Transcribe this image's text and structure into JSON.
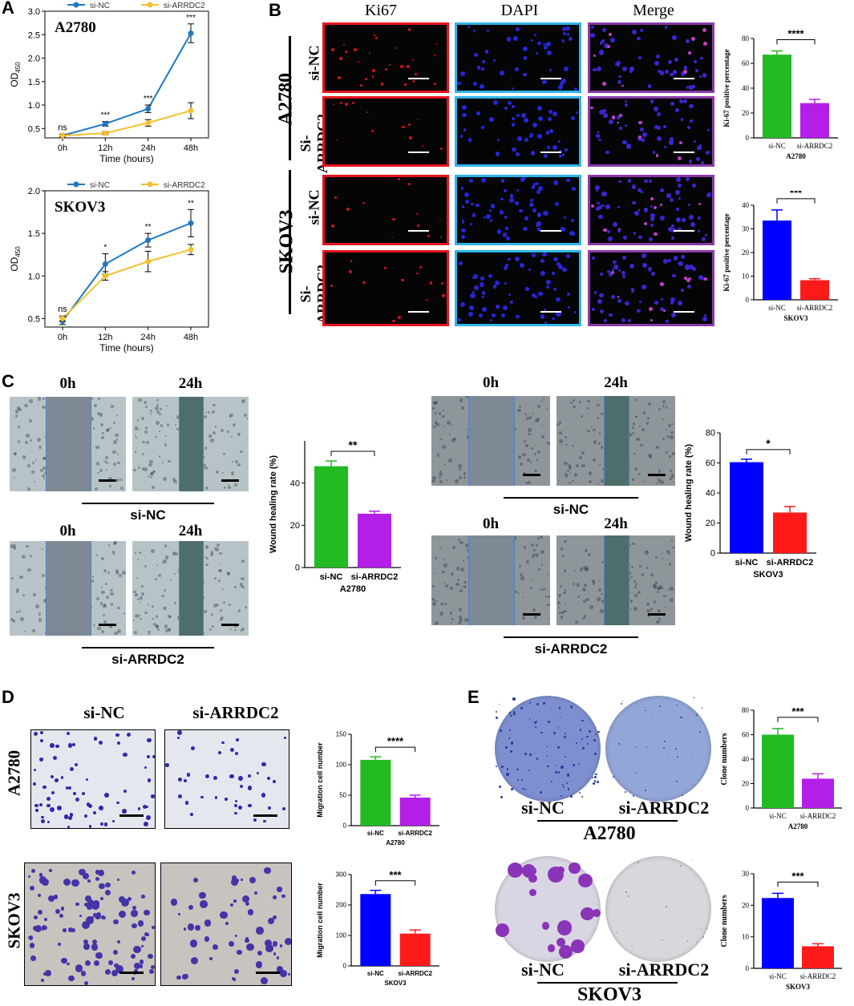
{
  "panels": {
    "a": "A",
    "b": "B",
    "c": "C",
    "d": "D",
    "e": "E"
  },
  "colors": {
    "blue": "#1f77c4",
    "yellow": "#f2c12e",
    "green": "#22bb22",
    "red": "#ff1a1a",
    "purple": "#b31fe6",
    "barblue": "#0000ff"
  },
  "chart_data": [
    {
      "id": "A2780_od",
      "type": "line",
      "title": "A2780",
      "xlabel": "Time (hours)",
      "ylabel": "OD450",
      "ylabel_main": "OD",
      "ylabel_sub": "450",
      "categories": [
        "0h",
        "12h",
        "24h",
        "48h"
      ],
      "ylim": [
        0.3,
        3.0
      ],
      "yticks": [
        "0.5",
        "1.0",
        "1.5",
        "2.0",
        "2.5",
        "3.0"
      ],
      "series": [
        {
          "name": "si-NC",
          "color": "#1f77c4",
          "values": [
            0.35,
            0.6,
            0.92,
            2.53
          ],
          "errors": [
            0.03,
            0.05,
            0.08,
            0.2
          ]
        },
        {
          "name": "si-ARRDC2",
          "color": "#f2c12e",
          "values": [
            0.35,
            0.4,
            0.62,
            0.88
          ],
          "errors": [
            0.03,
            0.03,
            0.07,
            0.17
          ]
        }
      ],
      "annotations": [
        "ns",
        "***",
        "***",
        "***"
      ]
    },
    {
      "id": "SKOV3_od",
      "type": "line",
      "title": "SKOV3",
      "xlabel": "Time (hours)",
      "ylabel": "OD450",
      "ylabel_main": "OD",
      "ylabel_sub": "450",
      "categories": [
        "0h",
        "12h",
        "24h",
        "48h"
      ],
      "ylim": [
        0.4,
        2.0
      ],
      "yticks": [
        "0.5",
        "1.0",
        "1.5",
        "2.0"
      ],
      "series": [
        {
          "name": "si-NC",
          "color": "#1f77c4",
          "values": [
            0.47,
            1.14,
            1.42,
            1.62
          ],
          "errors": [
            0.04,
            0.12,
            0.08,
            0.16
          ]
        },
        {
          "name": "si-ARRDC2",
          "color": "#f2c12e",
          "values": [
            0.5,
            1.0,
            1.17,
            1.31
          ],
          "errors": [
            0.03,
            0.05,
            0.12,
            0.06
          ]
        }
      ],
      "annotations": [
        "ns",
        "*",
        "**",
        "**"
      ]
    },
    {
      "id": "ki67_A2780",
      "type": "bar",
      "xlabel": "A2780",
      "ylabel": "Ki-67 positive percentage",
      "categories": [
        "si-NC",
        "si-ARRDC2"
      ],
      "values": [
        67,
        28
      ],
      "errors": [
        3,
        3
      ],
      "ylim": [
        0,
        80
      ],
      "yticks": [
        "0",
        "20",
        "40",
        "60",
        "80"
      ],
      "colors": [
        "#22bb22",
        "#b31fe6"
      ],
      "sig": "****"
    },
    {
      "id": "ki67_SKOV3",
      "type": "bar",
      "xlabel": "SKOV3",
      "ylabel": "Ki-67 positive percentage",
      "categories": [
        "si-NC",
        "si-ARRDC2"
      ],
      "values": [
        33.5,
        8.3
      ],
      "errors": [
        4.5,
        0.6
      ],
      "ylim": [
        0,
        40
      ],
      "yticks": [
        "0",
        "10",
        "20",
        "30",
        "40"
      ],
      "colors": [
        "#0000ff",
        "#ff1a1a"
      ],
      "sig": "***"
    },
    {
      "id": "wound_A2780",
      "type": "bar",
      "xlabel": "A2780",
      "ylabel": "Wound healing rate (%)",
      "categories": [
        "si-NC",
        "si-ARRDC2"
      ],
      "values": [
        48,
        25.5
      ],
      "errors": [
        2.5,
        1.2
      ],
      "ylim": [
        0,
        60
      ],
      "yticks": [
        "0",
        "20",
        "40"
      ],
      "colors": [
        "#22bb22",
        "#b31fe6"
      ],
      "sig": "**"
    },
    {
      "id": "wound_SKOV3",
      "type": "bar",
      "xlabel": "SKOV3",
      "ylabel": "Wound healing rate (%)",
      "categories": [
        "si-NC",
        "si-ARRDC2"
      ],
      "values": [
        60.5,
        27
      ],
      "errors": [
        2,
        4
      ],
      "ylim": [
        0,
        80
      ],
      "yticks": [
        "0",
        "20",
        "40",
        "60",
        "80"
      ],
      "colors": [
        "#0000ff",
        "#ff1a1a"
      ],
      "sig": "*"
    },
    {
      "id": "migration_A2780",
      "type": "bar",
      "xlabel": "A2780",
      "ylabel": "Migration cell number",
      "categories": [
        "si-NC",
        "si-ARRDC2"
      ],
      "values": [
        108,
        46
      ],
      "errors": [
        5,
        4
      ],
      "ylim": [
        0,
        150
      ],
      "yticks": [
        "0",
        "50",
        "100",
        "150"
      ],
      "colors": [
        "#22bb22",
        "#b31fe6"
      ],
      "sig": "****"
    },
    {
      "id": "migration_SKOV3",
      "type": "bar",
      "xlabel": "SKOV3",
      "ylabel": "Migration cell number",
      "categories": [
        "si-NC",
        "si-ARRDC2"
      ],
      "values": [
        236,
        106
      ],
      "errors": [
        12,
        12
      ],
      "ylim": [
        0,
        300
      ],
      "yticks": [
        "0",
        "100",
        "200",
        "300"
      ],
      "colors": [
        "#0000ff",
        "#ff1a1a"
      ],
      "sig": "***"
    },
    {
      "id": "clone_A2780",
      "type": "bar",
      "xlabel": "A2780",
      "ylabel": "Clone numbers",
      "categories": [
        "si-NC",
        "si-ARRDC2"
      ],
      "values": [
        60,
        24
      ],
      "errors": [
        5,
        4
      ],
      "ylim": [
        0,
        80
      ],
      "yticks": [
        "0",
        "20",
        "40",
        "60",
        "80"
      ],
      "colors": [
        "#22bb22",
        "#b31fe6"
      ],
      "sig": "***"
    },
    {
      "id": "clone_SKOV3",
      "type": "bar",
      "xlabel": "SKOV3",
      "ylabel": "Clone numbers",
      "categories": [
        "si-NC",
        "si-ARRDC2"
      ],
      "values": [
        22.3,
        7
      ],
      "errors": [
        1.5,
        0.8
      ],
      "ylim": [
        0,
        30
      ],
      "yticks": [
        "0",
        "10",
        "20",
        "30"
      ],
      "colors": [
        "#0000ff",
        "#ff1a1a"
      ],
      "sig": "***"
    }
  ],
  "panelB": {
    "col_headers": [
      "Ki67",
      "DAPI",
      "Merge"
    ],
    "header_colors": [
      "#e8141e",
      "#2a7fd0",
      "#1a1a8c"
    ],
    "cell_lines": [
      "A2780",
      "SKOV3"
    ],
    "rows": [
      "si-NC",
      "Si-ARRDC2",
      "si-NC",
      "Si-ARRDC2"
    ]
  },
  "panelC": {
    "times": [
      "0h",
      "24h"
    ],
    "groups": [
      "si-NC",
      "si-ARRDC2"
    ]
  },
  "panelD": {
    "cols": [
      "si-NC",
      "si-ARRDC2"
    ],
    "rows": [
      "A2780",
      "SKOV3"
    ]
  },
  "panelE": {
    "labels": [
      "si-NC",
      "si-ARRDC2"
    ],
    "cell_lines": [
      "A2780",
      "SKOV3"
    ]
  }
}
